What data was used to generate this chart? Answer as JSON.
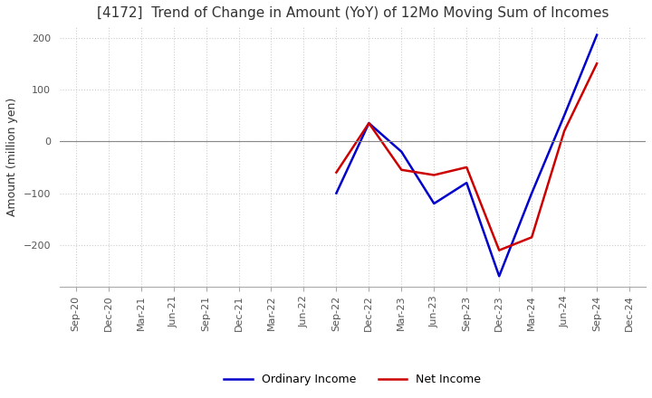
{
  "title": "[4172]  Trend of Change in Amount (YoY) of 12Mo Moving Sum of Incomes",
  "ylabel": "Amount (million yen)",
  "x_labels": [
    "Sep-20",
    "Dec-20",
    "Mar-21",
    "Jun-21",
    "Sep-21",
    "Dec-21",
    "Mar-22",
    "Jun-22",
    "Sep-22",
    "Dec-22",
    "Mar-23",
    "Jun-23",
    "Sep-23",
    "Dec-23",
    "Mar-24",
    "Jun-24",
    "Sep-24",
    "Dec-24"
  ],
  "ordinary_income": [
    null,
    null,
    null,
    null,
    null,
    null,
    null,
    null,
    -100,
    35,
    -20,
    -120,
    -80,
    -260,
    -100,
    50,
    205,
    null
  ],
  "net_income": [
    null,
    null,
    null,
    null,
    null,
    null,
    null,
    null,
    -60,
    35,
    -55,
    -65,
    -50,
    -210,
    -185,
    20,
    150,
    null
  ],
  "ordinary_color": "#0000cc",
  "net_color": "#cc0000",
  "ylim": [
    -280,
    220
  ],
  "yticks": [
    -200,
    -100,
    0,
    100,
    200
  ],
  "background_color": "#ffffff",
  "grid_color": "#cccccc"
}
